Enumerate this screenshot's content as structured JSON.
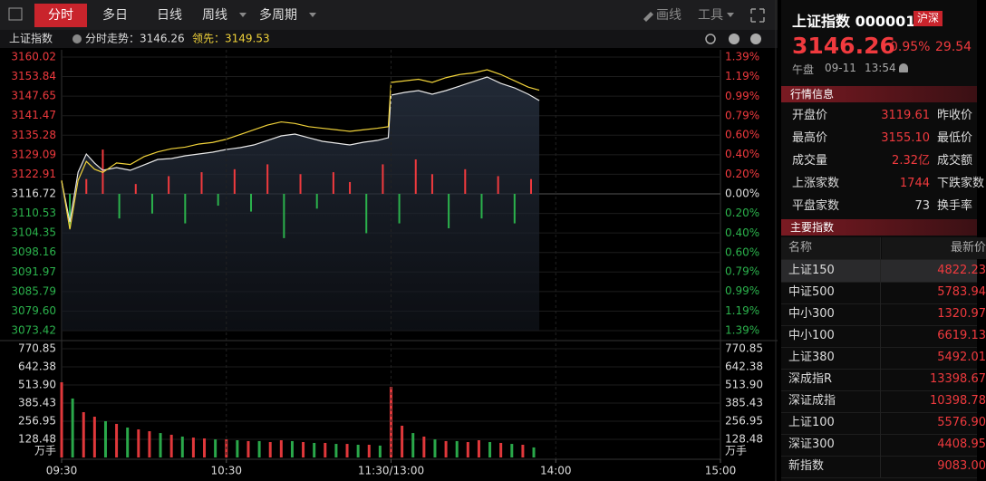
{
  "toolbar": {
    "tabs": [
      "分时",
      "多日",
      "日线",
      "周线",
      "多周期"
    ],
    "tools": [
      "画线",
      "工具"
    ]
  },
  "chart_header": {
    "name": "上证指数",
    "trend": "分时走势：3146.26",
    "lead": "领先：3149.53"
  },
  "chart_data": [
    {
      "type": "line",
      "x": [
        0,
        3,
        6,
        9,
        12,
        15,
        20,
        25,
        30,
        35,
        40,
        45,
        50,
        55,
        60,
        65,
        70,
        75,
        80,
        85,
        90,
        95,
        100,
        105,
        110,
        115,
        119,
        120,
        125,
        130,
        135,
        140,
        145,
        150,
        155,
        160,
        165,
        170,
        174
      ],
      "xlim": [
        0,
        240
      ],
      "series": [
        {
          "color": "#e8e8e8",
          "values": [
            3120.73,
            3107.82,
            3123.6,
            3129.33,
            3126.46,
            3124.17,
            3125.03,
            3124.17,
            3125.89,
            3127.61,
            3127.9,
            3128.76,
            3129.33,
            3129.91,
            3130.77,
            3131.34,
            3132.2,
            3133.63,
            3135.07,
            3135.64,
            3134.49,
            3133.35,
            3132.77,
            3132.2,
            3133.06,
            3133.63,
            3134.49,
            3147.97,
            3148.83,
            3149.41,
            3148.26,
            3149.41,
            3150.84,
            3152.28,
            3153.71,
            3151.7,
            3150.27,
            3148.26,
            3146.26
          ]
        },
        {
          "color": "#f0d23a",
          "values": [
            3121.0,
            3105.5,
            3121.0,
            3127.0,
            3124.5,
            3123.5,
            3126.5,
            3126.0,
            3128.5,
            3130.0,
            3131.0,
            3131.5,
            3132.5,
            3133.0,
            3134.0,
            3135.5,
            3137.0,
            3138.5,
            3139.5,
            3139.0,
            3138.0,
            3137.5,
            3137.0,
            3136.5,
            3137.0,
            3137.5,
            3138.0,
            3152.0,
            3152.5,
            3153.0,
            3152.0,
            3153.5,
            3154.5,
            3155.0,
            3156.0,
            3154.5,
            3152.5,
            3150.5,
            3149.53
          ]
        }
      ],
      "ylim": [
        3073.42,
        3160.02
      ],
      "yticks": [
        3160.02,
        3153.84,
        3147.65,
        3141.47,
        3135.28,
        3129.09,
        3122.91,
        3116.72,
        3110.53,
        3104.35,
        3098.16,
        3091.97,
        3085.79,
        {
          "value": 3079.6,
          "label": "3079.60"
        },
        3073.42
      ],
      "y2lim": [
        -1.39,
        1.39
      ],
      "y2ticks": [
        {
          "value": 1.39,
          "label": "1.39%"
        },
        {
          "value": 1.19,
          "label": "1.19%"
        },
        {
          "value": 0.99,
          "label": "0.99%"
        },
        {
          "value": 0.79,
          "label": "0.79%"
        },
        {
          "value": 0.6,
          "label": "0.60%"
        },
        {
          "value": 0.4,
          "label": "0.40%"
        },
        {
          "value": 0.2,
          "label": "0.20%"
        },
        {
          "value": 0,
          "label": "0.00%"
        },
        {
          "value": -0.2,
          "label": "0.20%"
        },
        {
          "value": -0.4,
          "label": "0.40%"
        },
        {
          "value": -0.6,
          "label": "0.60%"
        },
        {
          "value": -0.79,
          "label": "0.79%"
        },
        {
          "value": -0.99,
          "label": "0.99%"
        },
        {
          "value": -1.19,
          "label": "1.19%"
        },
        {
          "value": -1.39,
          "label": "1.39%"
        }
      ],
      "breadth": {
        "x": [
          3,
          9,
          15,
          21,
          27,
          33,
          39,
          45,
          51,
          57,
          63,
          69,
          75,
          81,
          87,
          93,
          99,
          105,
          111,
          117,
          123,
          129,
          135,
          141,
          147,
          153,
          159,
          165,
          171
        ],
        "values": [
          -0.35,
          0.15,
          0.45,
          -0.25,
          0.1,
          -0.2,
          0.18,
          -0.3,
          0.22,
          -0.12,
          0.25,
          -0.18,
          0.3,
          -0.45,
          0.2,
          -0.15,
          0.22,
          0.12,
          -0.4,
          0.3,
          -0.3,
          0.35,
          0.2,
          -0.35,
          0.25,
          -0.25,
          0.18,
          -0.3,
          0.15
        ]
      },
      "grid": true
    },
    {
      "type": "bar",
      "x": [
        0,
        4,
        8,
        12,
        16,
        20,
        24,
        28,
        32,
        36,
        40,
        44,
        48,
        52,
        56,
        60,
        64,
        68,
        72,
        76,
        80,
        84,
        88,
        92,
        96,
        100,
        104,
        108,
        112,
        116,
        120,
        124,
        128,
        132,
        136,
        140,
        144,
        148,
        152,
        156,
        160,
        164,
        168,
        172
      ],
      "xlim": [
        0,
        240
      ],
      "values": [
        533,
        418,
        321,
        289,
        257,
        238,
        212,
        199,
        186,
        173,
        161,
        148,
        141,
        135,
        128,
        128,
        122,
        116,
        116,
        109,
        122,
        116,
        109,
        103,
        103,
        96,
        96,
        90,
        90,
        84,
        501,
        225,
        173,
        148,
        128,
        116,
        116,
        109,
        122,
        109,
        103,
        96,
        90,
        71
      ],
      "colors": [
        "#e0383b",
        "#2aa84a",
        "#e0383b",
        "#e0383b",
        "#2aa84a",
        "#e0383b",
        "#2aa84a",
        "#e0383b",
        "#e0383b",
        "#2aa84a",
        "#e0383b",
        "#2aa84a",
        "#e0383b",
        "#e0383b",
        "#2aa84a",
        "#e0383b",
        "#2aa84a",
        "#e0383b",
        "#2aa84a",
        "#e0383b",
        "#e0383b",
        "#2aa84a",
        "#e0383b",
        "#2aa84a",
        "#e0383b",
        "#2aa84a",
        "#e0383b",
        "#2aa84a",
        "#e0383b",
        "#2aa84a",
        "#e0383b",
        "#e0383b",
        "#2aa84a",
        "#e0383b",
        "#2aa84a",
        "#e0383b",
        "#2aa84a",
        "#e0383b",
        "#e0383b",
        "#2aa84a",
        "#e0383b",
        "#2aa84a",
        "#e0383b",
        "#2aa84a"
      ],
      "ylim": [
        0,
        770.85
      ],
      "yticks": [
        128.48,
        256.95,
        385.43,
        {
          "value": 513.9,
          "label": "513.90"
        },
        642.38,
        770.85
      ],
      "unit": "万手",
      "xticks": [
        {
          "value": 0,
          "label": "09:30"
        },
        {
          "value": 60,
          "label": "10:30"
        },
        {
          "value": 120,
          "label": "11:30/13:00"
        },
        {
          "value": 180,
          "label": "14:00"
        },
        {
          "value": 240,
          "label": "15:00"
        }
      ]
    }
  ],
  "quote": {
    "name": "上证指数 000001",
    "badge": "沪深",
    "price": "3146.26",
    "change_pct": "0.95%",
    "change": "29.54",
    "session": "午盘",
    "date": "09-11",
    "time": "13:54"
  },
  "market_info": {
    "title": "行情信息",
    "rows": [
      [
        "开盘价",
        "3119.61",
        "昨收价"
      ],
      [
        "最高价",
        "3155.10",
        "最低价"
      ],
      [
        "成交量",
        "2.32亿",
        "成交额"
      ],
      [
        "上涨家数",
        "1744",
        "下跌家数"
      ],
      [
        "平盘家数",
        "73",
        "换手率"
      ]
    ]
  },
  "indices": {
    "title": "主要指数",
    "columns": [
      "名称",
      "最新价"
    ],
    "rows": [
      [
        "上证150",
        "4822.23"
      ],
      [
        "中证500",
        "5783.94"
      ],
      [
        "中小300",
        "1320.97"
      ],
      [
        "中小100",
        "6619.13"
      ],
      [
        "上证380",
        "5492.01"
      ],
      [
        "深成指R",
        "13398.67"
      ],
      [
        "深证成指",
        "10398.78"
      ],
      [
        "上证100",
        "5576.90"
      ],
      [
        "深证300",
        "4408.95"
      ],
      [
        "新指数",
        "9083.00"
      ]
    ]
  }
}
